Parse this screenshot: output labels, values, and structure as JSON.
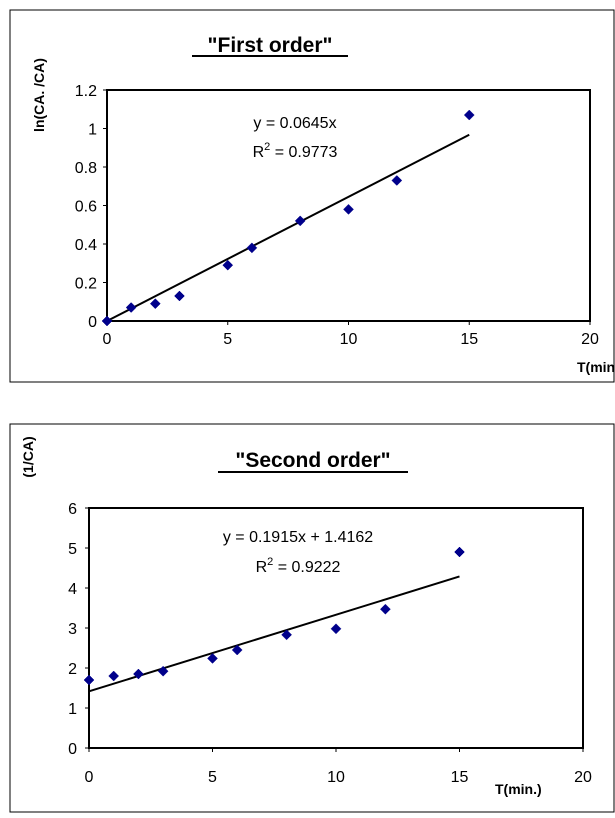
{
  "chart_data": [
    {
      "type": "scatter",
      "title": "\"First order\"",
      "xlabel": "T(min.",
      "ylabel": "ln(CA. /CA)",
      "xlim": [
        0,
        20
      ],
      "ylim": [
        0,
        1.2
      ],
      "x_ticks": [
        "0",
        "5",
        "10",
        "15",
        "20"
      ],
      "y_ticks": [
        "0",
        "0.2",
        "0.4",
        "0.6",
        "0.8",
        "1",
        "1.2"
      ],
      "grid": false,
      "marker_color": "#00008b",
      "series": [
        {
          "x": [
            0,
            1,
            2,
            3,
            5,
            6,
            8,
            10,
            12,
            15
          ],
          "y": [
            0,
            0.07,
            0.09,
            0.13,
            0.29,
            0.38,
            0.52,
            0.58,
            0.73,
            1.07
          ]
        }
      ],
      "trendline": {
        "slope": 0.0645,
        "intercept": 0,
        "x_range": [
          0,
          15
        ]
      },
      "equation": "y = 0.0645x",
      "r2_prefix": "R",
      "r2_sup": "2",
      "r2_value": " = 0.9773"
    },
    {
      "type": "scatter",
      "title": "\"Second order\"",
      "xlabel": "T(min.)",
      "ylabel": "(1/CA)",
      "xlim": [
        0,
        20
      ],
      "ylim": [
        0,
        6
      ],
      "x_ticks": [
        "0",
        "5",
        "10",
        "15",
        "20"
      ],
      "y_ticks": [
        "0",
        "1",
        "2",
        "3",
        "4",
        "5",
        "6"
      ],
      "grid": false,
      "marker_color": "#00008b",
      "series": [
        {
          "x": [
            0,
            1,
            2,
            3,
            5,
            6,
            8,
            10,
            12,
            15
          ],
          "y": [
            1.7,
            1.8,
            1.85,
            1.92,
            2.24,
            2.45,
            2.83,
            2.98,
            3.47,
            4.9
          ]
        }
      ],
      "trendline": {
        "slope": 0.1915,
        "intercept": 1.4162,
        "x_range": [
          0,
          15
        ]
      },
      "equation": "y = 0.1915x + 1.4162",
      "r2_prefix": "R",
      "r2_sup": "2",
      "r2_value": " = 0.9222"
    }
  ]
}
